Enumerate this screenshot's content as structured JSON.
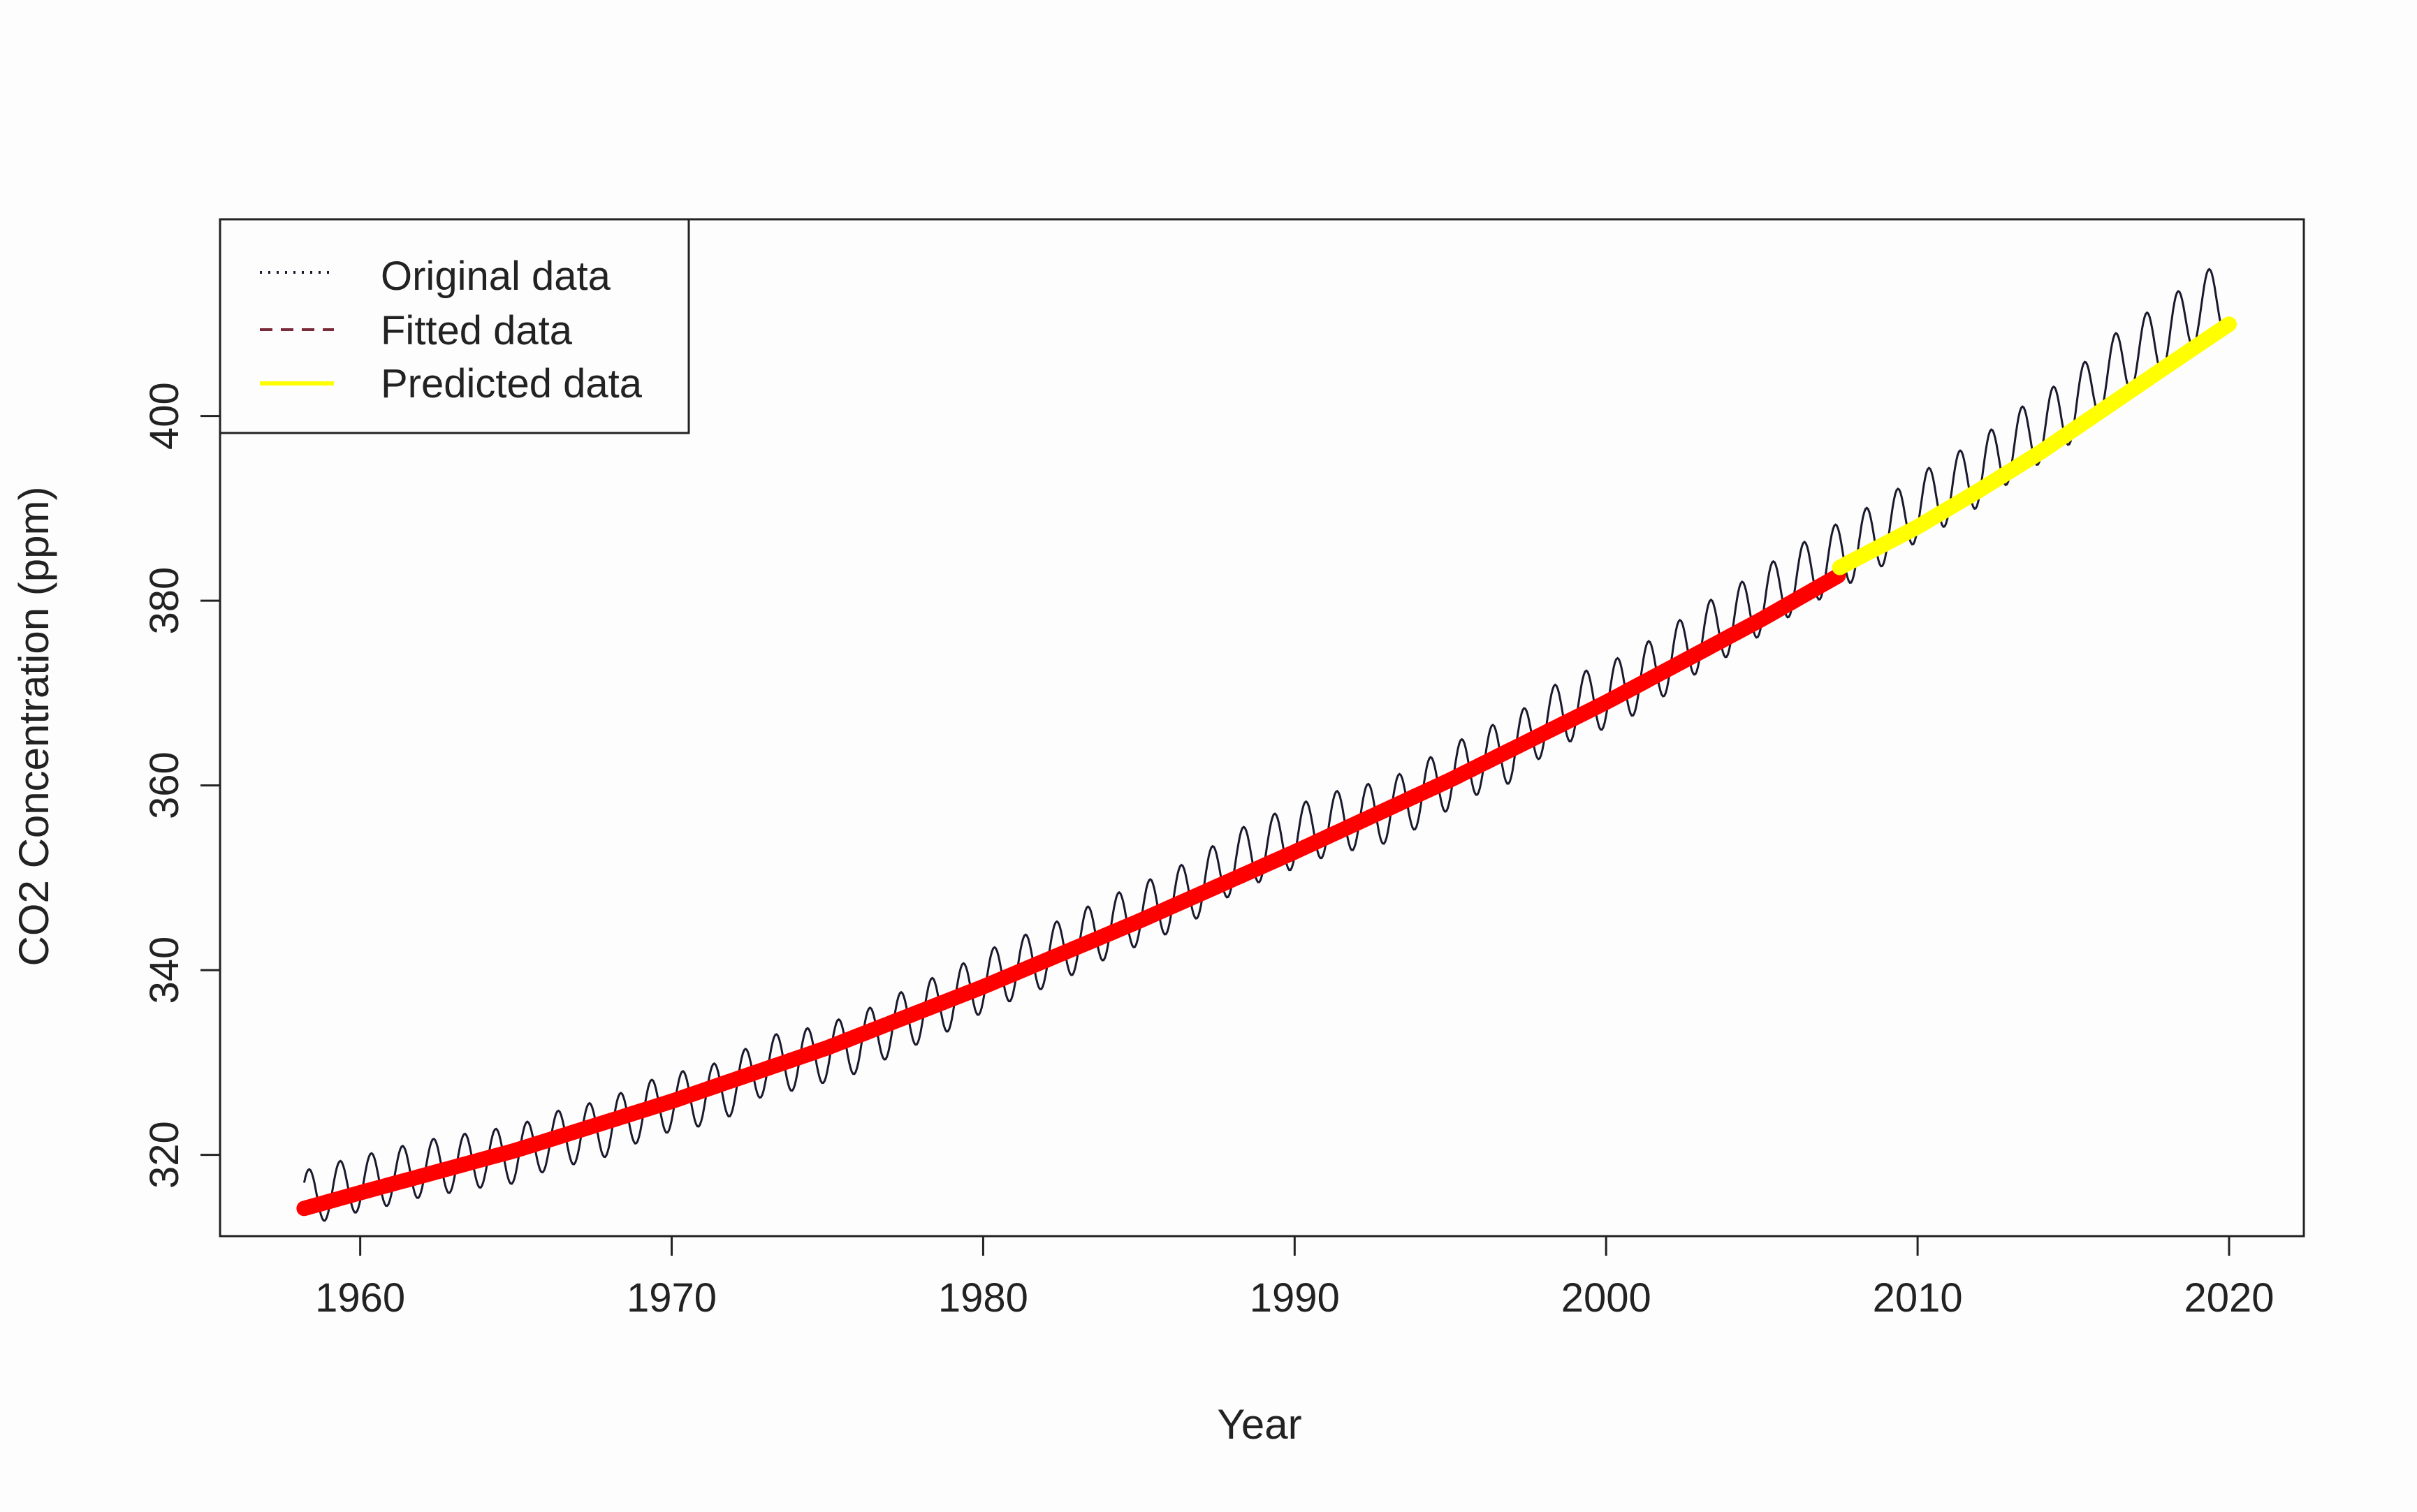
{
  "chart_data": {
    "type": "line",
    "title": "",
    "xlabel": "Year",
    "ylabel": "CO2 Concentration (ppm)",
    "xlim": [
      1955.5,
      2022.4
    ],
    "ylim": [
      311.2,
      421.3
    ],
    "x_ticks": [
      1960,
      1970,
      1980,
      1990,
      2000,
      2010,
      2020
    ],
    "y_ticks": [
      320,
      340,
      360,
      380,
      400
    ],
    "grid": false,
    "legend_position": "top-left",
    "series": [
      {
        "name": "Original data",
        "style": "dotted",
        "color": "#1a1a2e",
        "description_points": "monthly CO2 with seasonal cycle",
        "x": [
          1958.2,
          1959,
          1960,
          1961,
          1962,
          1963,
          1964,
          1965,
          1966,
          1967,
          1968,
          1969,
          1970,
          1971,
          1972,
          1973,
          1974,
          1975,
          1976,
          1977,
          1978,
          1979,
          1980,
          1981,
          1982,
          1983,
          1984,
          1985,
          1986,
          1987,
          1988,
          1989,
          1990,
          1991,
          1992,
          1993,
          1994,
          1995,
          1996,
          1997,
          1998,
          1999,
          2000,
          2001,
          2002,
          2003,
          2004,
          2005,
          2006,
          2007,
          2008,
          2009,
          2010,
          2011,
          2012,
          2013,
          2014,
          2015,
          2016,
          2017,
          2018,
          2019,
          2020
        ],
        "y": [
          315.3,
          316.0,
          316.9,
          317.6,
          318.5,
          319.0,
          319.6,
          320.0,
          321.4,
          322.2,
          323.0,
          324.6,
          325.7,
          326.3,
          327.5,
          329.7,
          330.2,
          331.1,
          332.1,
          333.8,
          335.4,
          336.8,
          338.7,
          340.1,
          341.4,
          343.0,
          344.6,
          346.0,
          347.4,
          349.2,
          351.6,
          353.1,
          354.4,
          355.7,
          356.5,
          357.2,
          358.9,
          360.9,
          362.7,
          363.8,
          366.8,
          368.5,
          369.7,
          371.3,
          373.5,
          375.9,
          377.7,
          379.9,
          382.1,
          384.0,
          385.8,
          387.6,
          390.1,
          391.9,
          393.9,
          396.6,
          398.7,
          400.9,
          404.4,
          406.8,
          408.7,
          411.7,
          413.0
        ]
      },
      {
        "name": "Fitted data",
        "style": "dashed",
        "color": "#ff0000",
        "x": [
          1958.2,
          1960,
          1965,
          1970,
          1975,
          1980,
          1985,
          1990,
          1995,
          2000,
          2005,
          2007.5
        ],
        "y": [
          314.2,
          315.9,
          320.5,
          325.8,
          331.6,
          338.2,
          345.3,
          352.8,
          360.6,
          369.0,
          378.0,
          382.8
        ]
      },
      {
        "name": "Predicted data",
        "style": "solid",
        "color": "#ffff00",
        "x": [
          2007.5,
          2010,
          2012,
          2014,
          2016,
          2018,
          2020.2
        ],
        "y": [
          383.6,
          388.0,
          392.0,
          396.2,
          400.8,
          405.4,
          410.4
        ]
      }
    ]
  }
}
